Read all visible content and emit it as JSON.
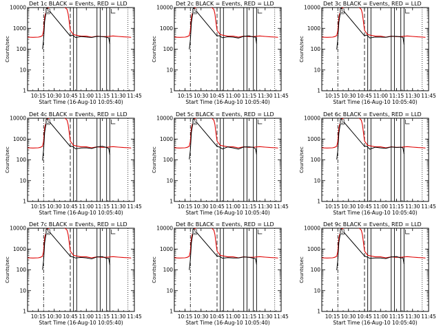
{
  "chart_data": {
    "type": "line",
    "layout": "3x3 grid",
    "y_scale": "log",
    "ylim": [
      1,
      10000
    ],
    "ytick_labels": [
      "1",
      "10",
      "100",
      "1000",
      "10000"
    ],
    "xlim": [
      "10:05",
      "11:45"
    ],
    "xtick_labels": [
      "10:15",
      "10:30",
      "10:45",
      "11:00",
      "11:15",
      "11:30",
      "11:45"
    ],
    "xlabel": "Start Time (16-Aug-10 10:05:40)",
    "ylabel": "Counts/sec",
    "series_colors": {
      "events": "#000000",
      "lld": "#e00000"
    },
    "vertical_markers": {
      "dash_dot": [
        "10:20"
      ],
      "dashed": [
        "10:45"
      ],
      "solid": [
        "10:48",
        "10:51",
        "11:10",
        "11:13",
        "11:19",
        "11:22"
      ],
      "dotted": [
        "11:39"
      ]
    },
    "panels": [
      {
        "title": "Det 1c BLACK = Events, RED = LLD",
        "tag": "D"
      },
      {
        "title": "Det 2c BLACK = Events, RED = LLD",
        "tag": "D"
      },
      {
        "title": "Det 3c BLACK = Events, RED = LLD",
        "tag": "D"
      },
      {
        "title": "Det 4c BLACK = Events, RED = LLD",
        "tag": "D"
      },
      {
        "title": "Det 5c BLACK = Events, RED = LLD",
        "tag": "D"
      },
      {
        "title": "Det 6c BLACK = Events, RED = LLD",
        "tag": "D"
      },
      {
        "title": "Det 7c BLACK = Events, RED = LLD",
        "tag": "D"
      },
      {
        "title": "Det 8c BLACK = Events, RED = LLD",
        "tag": "D"
      },
      {
        "title": "Det 9c BLACK = Events, RED = LLD",
        "tag": "D"
      }
    ],
    "series": [
      {
        "key": "lld",
        "x": [
          "10:05",
          "10:10",
          "10:15",
          "10:17",
          "10:19",
          "10:20",
          "10:21",
          "10:23",
          "10:26",
          "10:30",
          "10:35",
          "10:38",
          "10:40",
          "10:42",
          "10:43",
          "10:44",
          "10:45",
          "10:48",
          "10:55",
          "11:00",
          "11:05",
          "11:10",
          "11:15",
          "11:20",
          "11:25",
          "11:30",
          "11:35",
          "11:40",
          "11:42"
        ],
        "y": [
          380,
          370,
          380,
          400,
          450,
          800,
          3500,
          9000,
          10500,
          10500,
          10500,
          10500,
          10200,
          8000,
          5000,
          2000,
          800,
          500,
          420,
          420,
          380,
          420,
          400,
          410,
          430,
          410,
          390,
          380,
          370
        ]
      },
      {
        "key": "events",
        "x": [
          "10:19",
          "10:20",
          "10:21",
          "10:23",
          "10:45",
          "10:47",
          "10:50",
          "10:55",
          "11:00",
          "11:05",
          "11:10",
          "11:15",
          "11:19",
          "11:21",
          "11:22"
        ],
        "y": [
          100,
          300,
          2000,
          9500,
          450,
          450,
          350,
          390,
          380,
          350,
          400,
          420,
          380,
          360,
          180
        ]
      }
    ]
  }
}
